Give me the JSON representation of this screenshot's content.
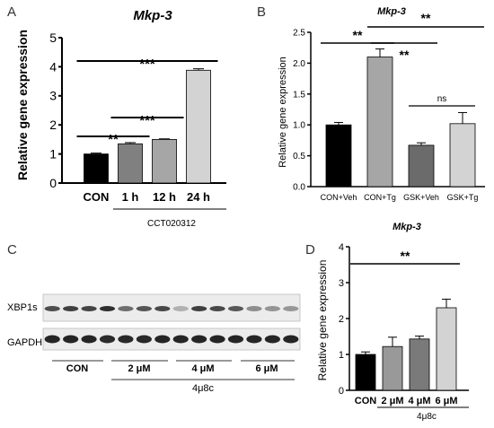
{
  "panel_labels": {
    "a": "A",
    "b": "B",
    "c": "C",
    "d": "D"
  },
  "chart_data": [
    {
      "panel": "A",
      "type": "bar",
      "title": "Mkp-3",
      "ylabel": "Relative gene expression",
      "xlabel": "",
      "group_label": "CCT020312",
      "categories": [
        "CON",
        "1 h",
        "12 h",
        "24 h"
      ],
      "values": [
        1.0,
        1.35,
        1.5,
        3.88
      ],
      "errors": [
        0.03,
        0.04,
        0.02,
        0.05
      ],
      "colors": [
        "#000000",
        "#808080",
        "#a6a6a6",
        "#d3d3d3"
      ],
      "ylim": [
        0,
        5
      ],
      "yticks": [
        "0",
        "1",
        "2",
        "3",
        "4",
        "5"
      ],
      "significance": [
        {
          "from": 0,
          "to": 1,
          "label": "**"
        },
        {
          "from": 1,
          "to": 2,
          "label": "***"
        },
        {
          "from": 0,
          "to": 3,
          "label": "***"
        }
      ]
    },
    {
      "panel": "B",
      "type": "bar",
      "title": "Mkp-3",
      "ylabel": "Relative gene expression",
      "xlabel": "",
      "categories": [
        "CON+Veh",
        "CON+Tg",
        "GSK+Veh",
        "GSK+Tg"
      ],
      "values": [
        1.0,
        2.1,
        0.67,
        1.02
      ],
      "errors": [
        0.04,
        0.13,
        0.04,
        0.18
      ],
      "colors": [
        "#000000",
        "#a6a6a6",
        "#6b6b6b",
        "#d3d3d3"
      ],
      "ylim": [
        0,
        2.5
      ],
      "yticks": [
        "0.0",
        "0.5",
        "1.0",
        "1.5",
        "2.0",
        "2.5"
      ],
      "significance": [
        {
          "from": 0,
          "to": 1,
          "label": "**"
        },
        {
          "from": 1,
          "to": 2,
          "label": "**"
        },
        {
          "from": 1,
          "to": 3,
          "label": "**"
        },
        {
          "from": 2,
          "to": 3,
          "label": "ns"
        }
      ]
    },
    {
      "panel": "D",
      "type": "bar",
      "title": "Mkp-3",
      "ylabel": "Relative gene expression",
      "xlabel": "",
      "group_label": "4μ8c",
      "categories": [
        "CON",
        "2 μM",
        "4 μM",
        "6 μM"
      ],
      "values": [
        1.0,
        1.22,
        1.43,
        2.3
      ],
      "errors": [
        0.07,
        0.26,
        0.08,
        0.24
      ],
      "colors": [
        "#000000",
        "#999999",
        "#7a7a7a",
        "#d3d3d3"
      ],
      "ylim": [
        0,
        4
      ],
      "yticks": [
        "0",
        "1",
        "2",
        "3",
        "4"
      ],
      "significance": [
        {
          "from": 0,
          "to": 3,
          "label": "**"
        }
      ]
    }
  ],
  "blot": {
    "rows": [
      {
        "label": "XBP1s",
        "intensities": [
          0.75,
          0.82,
          0.8,
          0.9,
          0.6,
          0.72,
          0.78,
          0.28,
          0.82,
          0.78,
          0.7,
          0.45,
          0.42,
          0.4
        ]
      },
      {
        "label": "GAPDH",
        "intensities": [
          0.95,
          0.95,
          0.95,
          0.92,
          0.93,
          0.93,
          0.95,
          0.95,
          0.95,
          0.95,
          0.95,
          0.95,
          0.95,
          0.95
        ]
      }
    ],
    "groups": [
      "CON",
      "2 μM",
      "4 μM",
      "6 μM"
    ],
    "group_label": "4μ8c"
  }
}
